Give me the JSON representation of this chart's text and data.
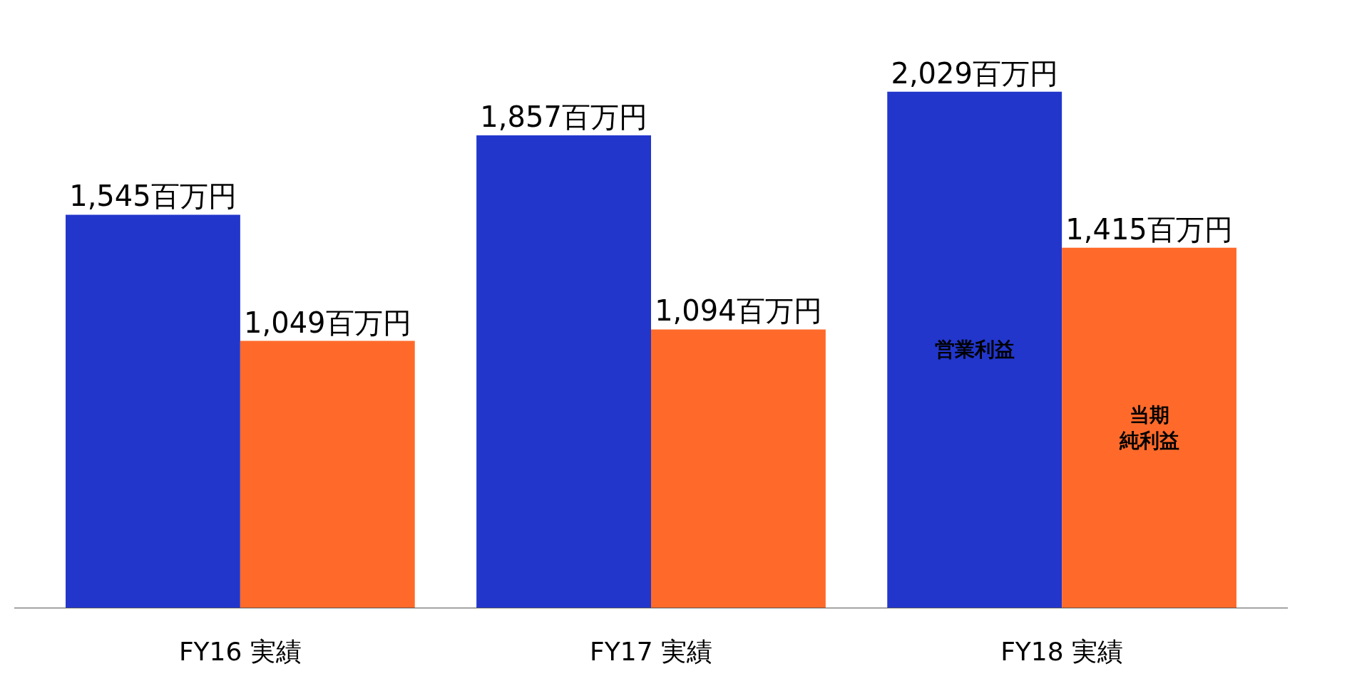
{
  "chart_data": {
    "type": "bar",
    "categories": [
      "FY16 実績",
      "FY17 実績",
      "FY18 実績"
    ],
    "series": [
      {
        "name": "営業利益",
        "color": "#2236cc",
        "values": [
          1545,
          1857,
          2029
        ],
        "value_labels": [
          "1,545百万円",
          "1,857百万円",
          "2,029百万円"
        ]
      },
      {
        "name": "当期純利益",
        "color": "#ff6a2a",
        "values": [
          1049,
          1094,
          1415
        ],
        "value_labels": [
          "1,049百万円",
          "1,094百万円",
          "1,415百万円"
        ]
      }
    ],
    "legend": false
  }
}
